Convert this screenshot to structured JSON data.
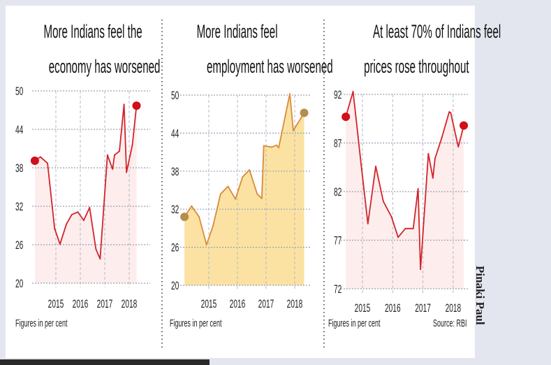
{
  "credit": "Pinaki Paul",
  "source": "Source: RBI",
  "chart_data": [
    {
      "type": "area",
      "title": [
        "More Indians feel the",
        "economy has worsened"
      ],
      "note": "Figures in per cent",
      "ylim": [
        20,
        50
      ],
      "yticks": [
        "50",
        "44",
        "38",
        "32",
        "26",
        "20"
      ],
      "xticks": [
        "2015",
        "2016",
        "2017",
        "2018"
      ],
      "grid": true,
      "colors": {
        "line": "#d3232a",
        "fill": "#fdeded",
        "marker": "#d0101a"
      },
      "x": [
        2014.14,
        2014.37,
        2014.66,
        2014.95,
        2015.17,
        2015.43,
        2015.65,
        2015.9,
        2016.14,
        2016.38,
        2016.64,
        2016.81,
        2017.11,
        2017.32,
        2017.4,
        2017.6,
        2017.79,
        2017.89,
        2018.13,
        2018.3
      ],
      "values": [
        39.1,
        39.7,
        38.7,
        28.5,
        26.1,
        29.2,
        30.7,
        31.1,
        29.8,
        31.8,
        25.3,
        23.8,
        40.0,
        37.8,
        40.0,
        40.6,
        47.9,
        37.3,
        41.6,
        47.7
      ]
    },
    {
      "type": "area",
      "title": [
        "More Indians feel",
        "employment has worsened"
      ],
      "note": "Figures in per cent",
      "ylim": [
        20,
        50
      ],
      "yticks": [
        "50",
        "44",
        "38",
        "32",
        "26",
        "20"
      ],
      "xticks": [
        "2015",
        "2016",
        "2017",
        "2018"
      ],
      "grid": true,
      "colors": {
        "line": "#d98a3a",
        "fill": "#fbe2a2",
        "marker": "#b58d4c"
      },
      "x": [
        2014.15,
        2014.4,
        2014.66,
        2014.92,
        2015.15,
        2015.41,
        2015.67,
        2015.93,
        2016.18,
        2016.42,
        2016.69,
        2016.85,
        2016.92,
        2017.2,
        2017.37,
        2017.44,
        2017.83,
        2017.95,
        2018.33
      ],
      "values": [
        30.8,
        32.5,
        30.8,
        26.4,
        29.4,
        34.4,
        35.6,
        33.6,
        37.1,
        38.2,
        34.4,
        33.7,
        42.0,
        41.8,
        42.1,
        41.7,
        50.2,
        44.4,
        47.2
      ]
    },
    {
      "type": "area",
      "title": [
        "At least 70% of Indians feel",
        "prices rose throughout"
      ],
      "note": "Figures in per cent",
      "ylim": [
        72,
        92
      ],
      "yticks": [
        "92",
        "87",
        "82",
        "77",
        "72"
      ],
      "xticks": [
        "2015",
        "2016",
        "2017",
        "2018"
      ],
      "grid": true,
      "colors": {
        "line": "#d3232a",
        "fill": "#fdeded",
        "marker": "#d0101a"
      },
      "x": [
        2014.45,
        2014.69,
        2014.96,
        2015.18,
        2015.44,
        2015.69,
        2015.96,
        2016.18,
        2016.42,
        2016.68,
        2016.84,
        2016.92,
        2017.18,
        2017.33,
        2017.4,
        2017.62,
        2017.87,
        2017.92,
        2018.17,
        2018.35
      ],
      "values": [
        89.7,
        92.3,
        84.7,
        78.7,
        84.6,
        81.0,
        79.4,
        77.3,
        78.2,
        78.2,
        82.3,
        74.0,
        85.9,
        83.4,
        85.4,
        87.5,
        90.2,
        90.1,
        86.6,
        88.8
      ]
    }
  ]
}
